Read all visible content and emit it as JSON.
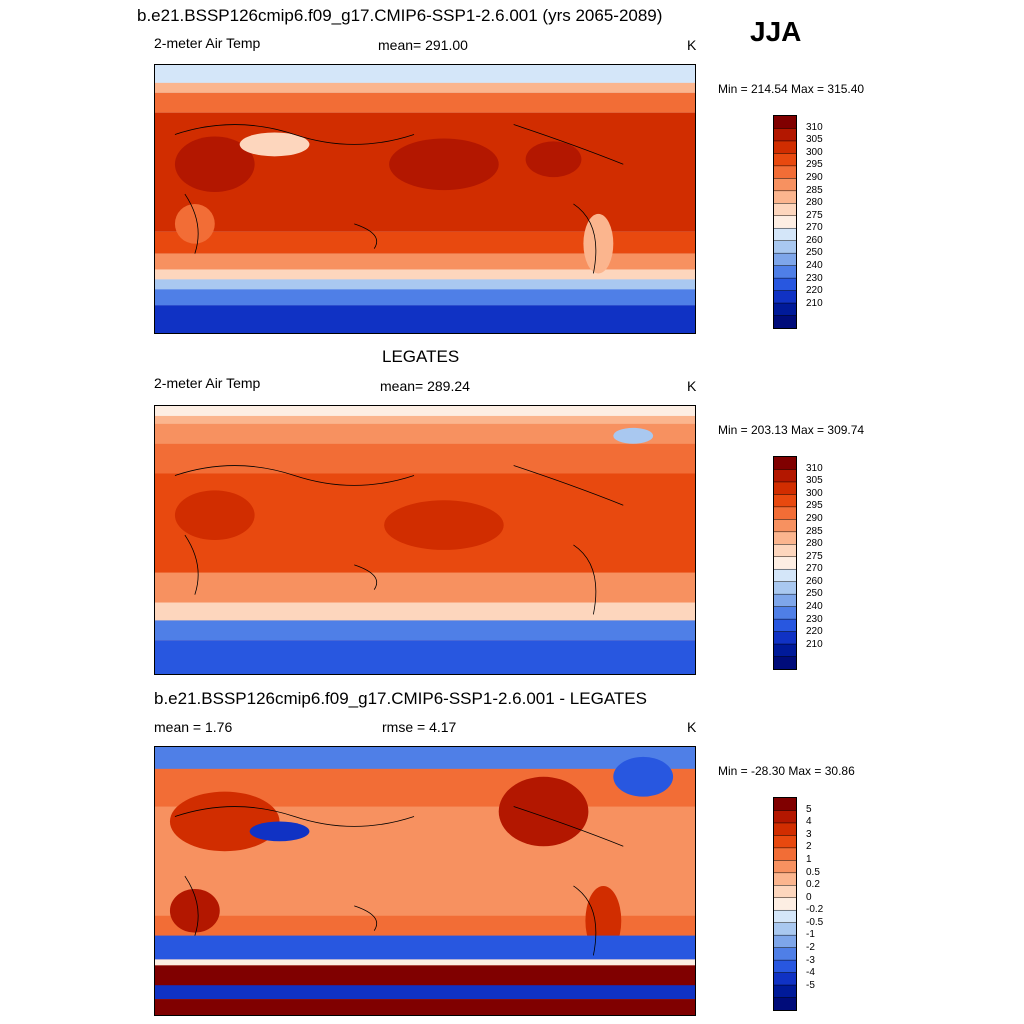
{
  "season_label": "JJA",
  "panels": [
    {
      "title": "b.e21.BSSP126cmip6.f09_g17.CMIP6-SSP1-2.6.001 (yrs 2065-2089)",
      "left_label": "2-meter Air Temp",
      "center_label": "mean= 291.00",
      "units": "K",
      "minmax": "Min = 214.54 Max = 315.40",
      "colorbar_labels": [
        "310",
        "305",
        "300",
        "295",
        "290",
        "285",
        "280",
        "275",
        "270",
        "260",
        "250",
        "240",
        "230",
        "220",
        "210"
      ],
      "colors": [
        "#800000",
        "#b31700",
        "#d12d00",
        "#e8490f",
        "#f26d36",
        "#f79160",
        "#fbb58e",
        "#fdd6bd",
        "#fdeee3",
        "#d4e6f9",
        "#a9c8f0",
        "#7ea6ea",
        "#4f7fe7",
        "#2857e0",
        "#1032c4",
        "#001a99",
        "#000c7a"
      ]
    },
    {
      "title": "LEGATES",
      "left_label": "2-meter Air Temp",
      "center_label": "mean= 289.24",
      "units": "K",
      "minmax": "Min = 203.13 Max = 309.74",
      "colorbar_labels": [
        "310",
        "305",
        "300",
        "295",
        "290",
        "285",
        "280",
        "275",
        "270",
        "260",
        "250",
        "240",
        "230",
        "220",
        "210"
      ],
      "colors": [
        "#800000",
        "#b31700",
        "#d12d00",
        "#e8490f",
        "#f26d36",
        "#f79160",
        "#fbb58e",
        "#fdd6bd",
        "#fdeee3",
        "#d4e6f9",
        "#a9c8f0",
        "#7ea6ea",
        "#4f7fe7",
        "#2857e0",
        "#1032c4",
        "#001a99",
        "#000c7a"
      ]
    },
    {
      "title": "b.e21.BSSP126cmip6.f09_g17.CMIP6-SSP1-2.6.001 - LEGATES",
      "left_label": "mean =   1.76",
      "center_label": "rmse =   4.17",
      "units": "K",
      "minmax": "Min = -28.30 Max =  30.86",
      "colorbar_labels": [
        "5",
        "4",
        "3",
        "2",
        "1",
        "0.5",
        "0.2",
        "0",
        "-0.2",
        "-0.5",
        "-1",
        "-2",
        "-3",
        "-4",
        "-5"
      ],
      "colors": [
        "#800000",
        "#b31700",
        "#d12d00",
        "#e8490f",
        "#f26d36",
        "#f79160",
        "#fbb58e",
        "#fdd6bd",
        "#fdeee3",
        "#d4e6f9",
        "#a9c8f0",
        "#7ea6ea",
        "#4f7fe7",
        "#2857e0",
        "#1032c4",
        "#001a99",
        "#000c7a"
      ]
    }
  ]
}
